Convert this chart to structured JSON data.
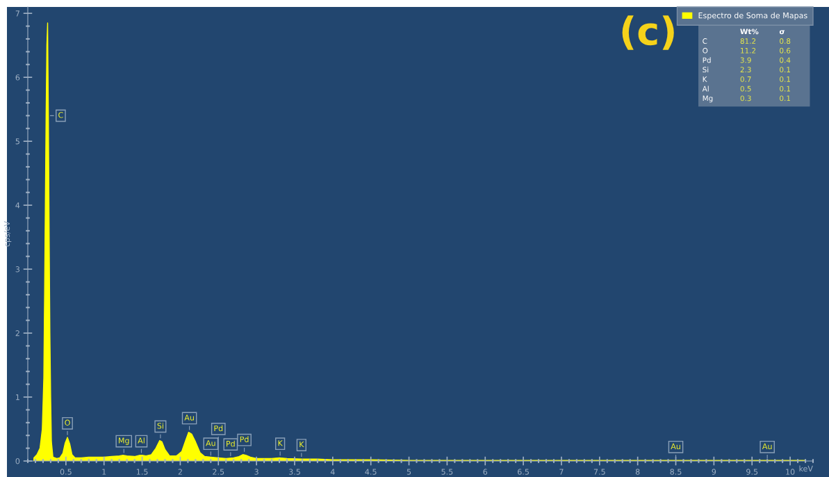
{
  "chart_data": {
    "type": "area",
    "xlabel": "keV",
    "ylabel": "cps/eV",
    "xlim": [
      0,
      10.3
    ],
    "ylim": [
      0,
      7.1
    ],
    "xticks": [
      0.5,
      1,
      1.5,
      2,
      2.5,
      3,
      3.5,
      4,
      4.5,
      5,
      5.5,
      6,
      6.5,
      7,
      7.5,
      8,
      8.5,
      9,
      9.5,
      10
    ],
    "yticks": [
      0,
      1,
      2,
      3,
      4,
      5,
      6,
      7
    ],
    "grid": false,
    "legend": "top right",
    "series": [
      {
        "name": "Espectro de Soma de Mapas",
        "color": "#ffff00",
        "x": [
          0.08,
          0.12,
          0.16,
          0.19,
          0.21,
          0.22,
          0.23,
          0.24,
          0.25,
          0.26,
          0.27,
          0.28,
          0.29,
          0.3,
          0.31,
          0.33,
          0.38,
          0.42,
          0.46,
          0.49,
          0.52,
          0.55,
          0.58,
          0.62,
          0.7,
          0.8,
          0.9,
          1.0,
          1.1,
          1.2,
          1.25,
          1.3,
          1.4,
          1.47,
          1.5,
          1.55,
          1.62,
          1.68,
          1.73,
          1.76,
          1.8,
          1.86,
          1.95,
          2.02,
          2.07,
          2.11,
          2.15,
          2.2,
          2.26,
          2.32,
          2.4,
          2.5,
          2.6,
          2.7,
          2.77,
          2.82,
          2.86,
          2.92,
          3.0,
          3.1,
          3.2,
          3.3,
          3.4,
          3.6,
          3.8,
          4.0,
          4.5,
          5.0,
          5.5,
          6.0,
          7.0,
          8.0,
          8.5,
          9.0,
          9.7,
          10.2
        ],
        "values": [
          0.05,
          0.1,
          0.2,
          0.5,
          1.3,
          2.6,
          4.0,
          5.4,
          6.5,
          6.85,
          5.4,
          3.6,
          2.0,
          1.0,
          0.3,
          0.06,
          0.04,
          0.05,
          0.12,
          0.28,
          0.37,
          0.27,
          0.1,
          0.05,
          0.05,
          0.06,
          0.06,
          0.06,
          0.07,
          0.08,
          0.09,
          0.08,
          0.07,
          0.09,
          0.09,
          0.08,
          0.1,
          0.2,
          0.32,
          0.3,
          0.18,
          0.08,
          0.08,
          0.15,
          0.32,
          0.45,
          0.42,
          0.3,
          0.13,
          0.07,
          0.06,
          0.05,
          0.04,
          0.05,
          0.07,
          0.1,
          0.09,
          0.06,
          0.04,
          0.04,
          0.04,
          0.05,
          0.04,
          0.03,
          0.03,
          0.02,
          0.02,
          0.01,
          0.01,
          0.01,
          0.01,
          0.01,
          0.01,
          0.01,
          0.01,
          0.01
        ]
      }
    ],
    "annotations": [
      "(c)",
      "Wt%",
      "σ",
      "C",
      "81.2",
      "0.8",
      "O",
      "11.2",
      "0.6",
      "Pd",
      "3.9",
      "0.4",
      "Si",
      "2.3",
      "0.1",
      "K",
      "0.7",
      "0.1",
      "Al",
      "0.5",
      "0.1",
      "Mg",
      "0.3",
      "0.1",
      {
        "text": "C",
        "x": 0.27,
        "y": 5.4
      },
      {
        "text": "O",
        "x": 0.52,
        "y": 0.38
      },
      {
        "text": "Mg",
        "x": 1.26,
        "y": 0.1
      },
      {
        "text": "Al",
        "x": 1.49,
        "y": 0.1
      },
      {
        "text": "Si",
        "x": 1.74,
        "y": 0.33
      },
      {
        "text": "Au",
        "x": 2.12,
        "y": 0.46
      },
      {
        "text": "Au",
        "x": 2.4,
        "y": 0.06
      },
      {
        "text": "Pd",
        "x": 2.5,
        "y": 0.05
      },
      {
        "text": "Pd",
        "x": 2.66,
        "y": 0.05
      },
      {
        "text": "Pd",
        "x": 2.84,
        "y": 0.12
      },
      {
        "text": "K",
        "x": 3.31,
        "y": 0.06
      },
      {
        "text": "K",
        "x": 3.59,
        "y": 0.04
      },
      {
        "text": "Au",
        "x": 8.5,
        "y": 0.01
      },
      {
        "text": "Au",
        "x": 9.7,
        "y": 0.01
      }
    ]
  }
}
